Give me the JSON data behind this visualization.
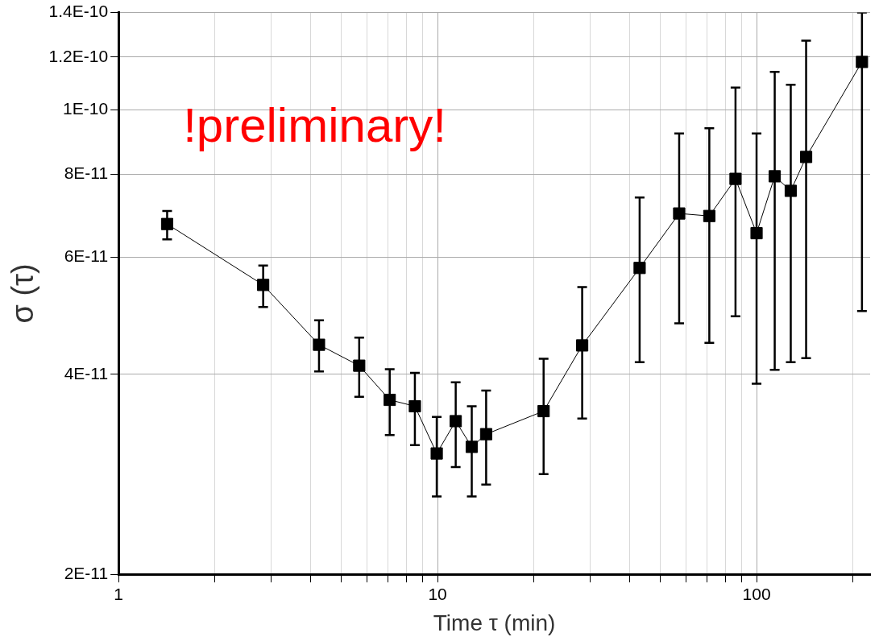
{
  "chart_data": {
    "type": "line",
    "xlabel": "Time τ (min)",
    "ylabel": "σ (τ)",
    "annotations": [
      "!preliminary!"
    ],
    "log": "xy",
    "grid": true,
    "legend": false,
    "marker": "square",
    "line_style": "solid",
    "xlim": [
      1,
      227
    ],
    "ylim": [
      2e-11,
      1.4e-10
    ],
    "xticks": [
      1,
      {
        "value": 2,
        "label": null
      },
      {
        "value": 3,
        "label": null
      },
      {
        "value": 4,
        "label": null
      },
      {
        "value": 5,
        "label": null
      },
      {
        "value": 6,
        "label": null
      },
      {
        "value": 7,
        "label": null
      },
      {
        "value": 8,
        "label": null
      },
      {
        "value": 9,
        "label": null
      },
      10,
      {
        "value": 20,
        "label": null
      },
      {
        "value": 30,
        "label": null
      },
      {
        "value": 40,
        "label": null
      },
      {
        "value": 50,
        "label": null
      },
      {
        "value": 60,
        "label": null
      },
      {
        "value": 70,
        "label": null
      },
      {
        "value": 80,
        "label": null
      },
      {
        "value": 90,
        "label": null
      },
      100,
      {
        "value": 200,
        "label": null
      }
    ],
    "yticks": [
      {
        "value": 2e-11,
        "label": "2E-11"
      },
      {
        "value": 4e-11,
        "label": "4E-11"
      },
      {
        "value": 6e-11,
        "label": "6E-11"
      },
      {
        "value": 8e-11,
        "label": "8E-11"
      },
      {
        "value": 1e-10,
        "label": "1E-10"
      },
      {
        "value": 1.2e-10,
        "label": "1.2E-10"
      },
      {
        "value": 1.4e-10,
        "label": "1.4E-10"
      }
    ],
    "series": [
      {
        "color": "#000000",
        "x": [
          1.42,
          2.84,
          4.25,
          5.68,
          7.08,
          8.49,
          9.94,
          11.4,
          12.8,
          14.2,
          21.5,
          28.4,
          43.0,
          57.2,
          71.1,
          85.9,
          100,
          114,
          128,
          143,
          214
        ],
        "values": [
          6.73e-11,
          5.45e-11,
          4.43e-11,
          4.12e-11,
          3.66e-11,
          3.58e-11,
          3.04e-11,
          3.4e-11,
          3.11e-11,
          3.25e-11,
          3.52e-11,
          4.42e-11,
          5.78e-11,
          6.98e-11,
          6.92e-11,
          7.87e-11,
          6.52e-11,
          7.94e-11,
          7.55e-11,
          8.49e-11,
          1.18e-10
        ],
        "errors": [
          [
            6.38e-11,
            7.04e-11
          ],
          [
            5.05e-11,
            5.83e-11
          ],
          [
            4.04e-11,
            4.82e-11
          ],
          [
            3.7e-11,
            4.54e-11
          ],
          [
            3.24e-11,
            4.07e-11
          ],
          [
            3.13e-11,
            4.02e-11
          ],
          [
            2.62e-11,
            3.45e-11
          ],
          [
            2.9e-11,
            3.89e-11
          ],
          [
            2.62e-11,
            3.58e-11
          ],
          [
            2.73e-11,
            3.78e-11
          ],
          [
            2.83e-11,
            4.22e-11
          ],
          [
            3.43e-11,
            5.41e-11
          ],
          [
            4.17e-11,
            7.38e-11
          ],
          [
            4.77e-11,
            9.21e-11
          ],
          [
            4.46e-11,
            9.38e-11
          ],
          [
            4.89e-11,
            1.08e-10
          ],
          [
            3.87e-11,
            9.21e-11
          ],
          [
            4.06e-11,
            1.14e-10
          ],
          [
            4.17e-11,
            1.09e-10
          ],
          [
            4.23e-11,
            1.27e-10
          ],
          [
            4.98e-11,
            1.4e-10
          ]
        ]
      }
    ]
  }
}
